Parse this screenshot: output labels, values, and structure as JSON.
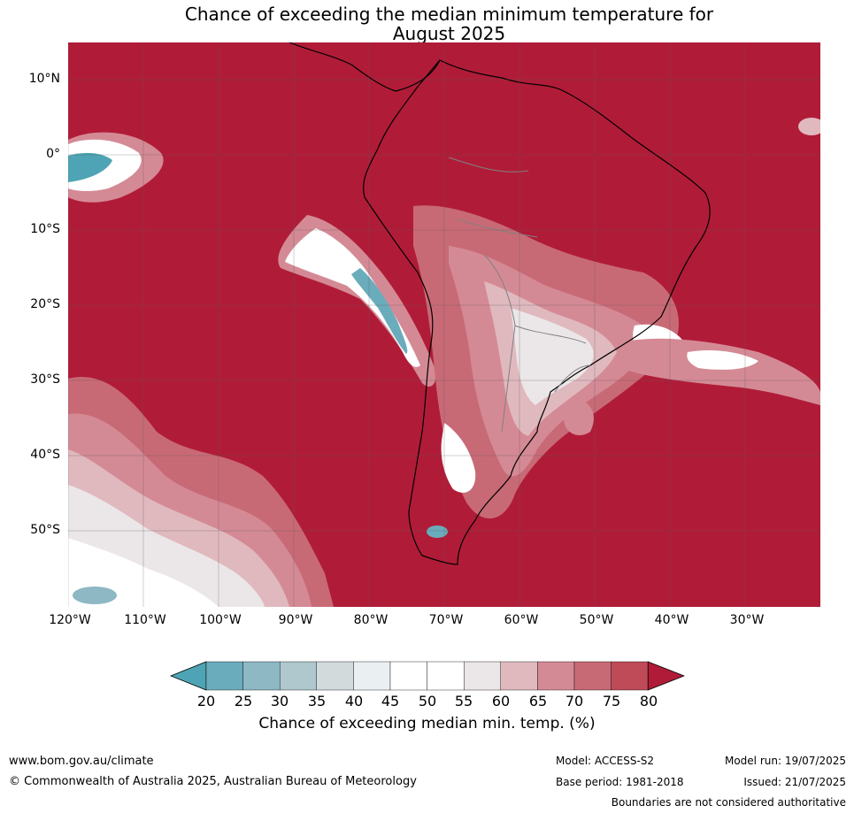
{
  "title_line1": "Chance of exceeding the median minimum temperature for",
  "title_line2": "August 2025",
  "lat_labels": [
    "10°N",
    "0°",
    "10°S",
    "20°S",
    "30°S",
    "40°S",
    "50°S"
  ],
  "lon_labels": [
    "120°W",
    "110°W",
    "100°W",
    "90°W",
    "80°W",
    "70°W",
    "60°W",
    "50°W",
    "40°W",
    "30°W"
  ],
  "colorbar": {
    "ticks": [
      "20",
      "25",
      "30",
      "35",
      "40",
      "45",
      "50",
      "55",
      "60",
      "65",
      "70",
      "75",
      "80"
    ],
    "colors": [
      "#4ea4b4",
      "#6aacbb",
      "#8db8c4",
      "#aec8cd",
      "#d2dadb",
      "#eaf0f2",
      "#ffffff",
      "#ffffff",
      "#ebe7e8",
      "#e0b9bf",
      "#d48a95",
      "#c86a76",
      "#bf4a58",
      "#b01c38"
    ],
    "label": "Chance of exceeding median min. temp. (%)"
  },
  "footer": {
    "url": "www.bom.gov.au/climate",
    "copyright": "© Commonwealth of Australia 2025, Australian Bureau of Meteorology",
    "model": "Model: ACCESS-S2",
    "base_period": "Base period: 1981-2018",
    "model_run": "Model run: 19/07/2025",
    "issued": "Issued: 21/07/2025",
    "disclaimer": "Boundaries are not considered authoritative"
  },
  "map_colors": {
    "ocean_high": "#b01c38",
    "land_high": "#b01c38",
    "coast": "#000000",
    "borders": "#808080"
  }
}
